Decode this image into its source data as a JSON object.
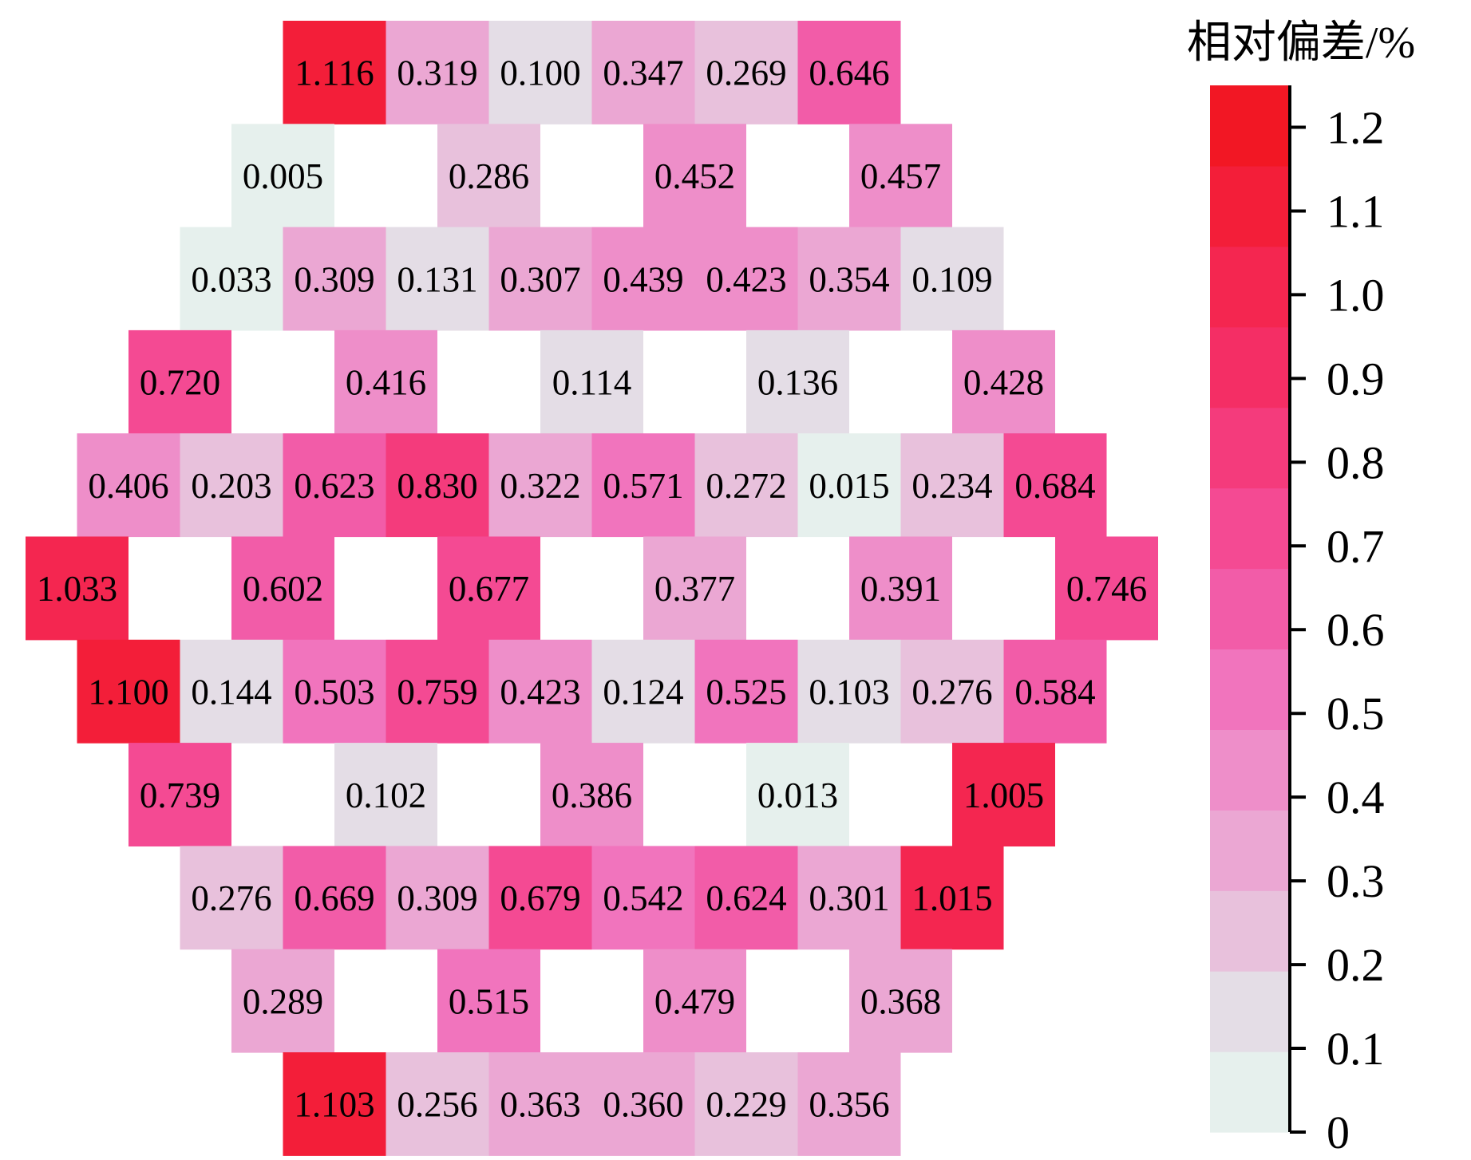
{
  "chart_data": {
    "type": "heatmap",
    "title": "",
    "colorbar": {
      "title": "相对偏差/%",
      "min": 0,
      "max": 1.25,
      "ticks": [
        0,
        0.1,
        0.2,
        0.3,
        0.4,
        0.5,
        0.6,
        0.7,
        0.8,
        0.9,
        1.0,
        1.1,
        1.2
      ],
      "tick_labels": [
        "0",
        "0.1",
        "0.2",
        "0.3",
        "0.4",
        "0.5",
        "0.6",
        "0.7",
        "0.8",
        "0.9",
        "1.0",
        "1.1",
        "1.2"
      ],
      "bands": [
        "#e6f0ed",
        "#e4dde6",
        "#e8c1dc",
        "#eba7d3",
        "#ee8ec9",
        "#f174bd",
        "#f25ca8",
        "#f44a93",
        "#f43b7c",
        "#f42e65",
        "#f42650",
        "#f31e39",
        "#f21724"
      ]
    },
    "rows": [
      {
        "cells": [
          {
            "col": 5,
            "value": "1.116"
          },
          {
            "col": 7,
            "value": "0.319"
          },
          {
            "col": 9,
            "value": "0.100"
          },
          {
            "col": 11,
            "value": "0.347"
          },
          {
            "col": 13,
            "value": "0.269"
          },
          {
            "col": 15,
            "value": "0.646"
          }
        ]
      },
      {
        "cells": [
          {
            "col": 4,
            "value": "0.005"
          },
          {
            "col": 8,
            "value": "0.286"
          },
          {
            "col": 12,
            "value": "0.452"
          },
          {
            "col": 16,
            "value": "0.457"
          }
        ]
      },
      {
        "cells": [
          {
            "col": 3,
            "value": "0.033"
          },
          {
            "col": 5,
            "value": "0.309"
          },
          {
            "col": 7,
            "value": "0.131"
          },
          {
            "col": 9,
            "value": "0.307"
          },
          {
            "col": 11,
            "value": "0.439"
          },
          {
            "col": 13,
            "value": "0.423"
          },
          {
            "col": 15,
            "value": "0.354"
          },
          {
            "col": 17,
            "value": "0.109"
          }
        ]
      },
      {
        "cells": [
          {
            "col": 2,
            "value": "0.720"
          },
          {
            "col": 6,
            "value": "0.416"
          },
          {
            "col": 10,
            "value": "0.114"
          },
          {
            "col": 14,
            "value": "0.136"
          },
          {
            "col": 18,
            "value": "0.428"
          }
        ]
      },
      {
        "cells": [
          {
            "col": 1,
            "value": "0.406"
          },
          {
            "col": 3,
            "value": "0.203"
          },
          {
            "col": 5,
            "value": "0.623"
          },
          {
            "col": 7,
            "value": "0.830"
          },
          {
            "col": 9,
            "value": "0.322"
          },
          {
            "col": 11,
            "value": "0.571"
          },
          {
            "col": 13,
            "value": "0.272"
          },
          {
            "col": 15,
            "value": "0.015"
          },
          {
            "col": 17,
            "value": "0.234"
          },
          {
            "col": 19,
            "value": "0.684"
          }
        ]
      },
      {
        "cells": [
          {
            "col": 0,
            "value": "1.033"
          },
          {
            "col": 4,
            "value": "0.602"
          },
          {
            "col": 8,
            "value": "0.677"
          },
          {
            "col": 12,
            "value": "0.377"
          },
          {
            "col": 16,
            "value": "0.391"
          },
          {
            "col": 20,
            "value": "0.746"
          }
        ]
      },
      {
        "cells": [
          {
            "col": 1,
            "value": "1.100"
          },
          {
            "col": 3,
            "value": "0.144"
          },
          {
            "col": 5,
            "value": "0.503"
          },
          {
            "col": 7,
            "value": "0.759"
          },
          {
            "col": 9,
            "value": "0.423"
          },
          {
            "col": 11,
            "value": "0.124"
          },
          {
            "col": 13,
            "value": "0.525"
          },
          {
            "col": 15,
            "value": "0.103"
          },
          {
            "col": 17,
            "value": "0.276"
          },
          {
            "col": 19,
            "value": "0.584"
          }
        ]
      },
      {
        "cells": [
          {
            "col": 2,
            "value": "0.739"
          },
          {
            "col": 6,
            "value": "0.102"
          },
          {
            "col": 10,
            "value": "0.386"
          },
          {
            "col": 14,
            "value": "0.013"
          },
          {
            "col": 18,
            "value": "1.005"
          }
        ]
      },
      {
        "cells": [
          {
            "col": 3,
            "value": "0.276"
          },
          {
            "col": 5,
            "value": "0.669"
          },
          {
            "col": 7,
            "value": "0.309"
          },
          {
            "col": 9,
            "value": "0.679"
          },
          {
            "col": 11,
            "value": "0.542"
          },
          {
            "col": 13,
            "value": "0.624"
          },
          {
            "col": 15,
            "value": "0.301"
          },
          {
            "col": 17,
            "value": "1.015"
          }
        ]
      },
      {
        "cells": [
          {
            "col": 4,
            "value": "0.289"
          },
          {
            "col": 8,
            "value": "0.515"
          },
          {
            "col": 12,
            "value": "0.479"
          },
          {
            "col": 16,
            "value": "0.368"
          }
        ]
      },
      {
        "cells": [
          {
            "col": 5,
            "value": "1.103"
          },
          {
            "col": 7,
            "value": "0.256"
          },
          {
            "col": 9,
            "value": "0.363"
          },
          {
            "col": 11,
            "value": "0.360"
          },
          {
            "col": 13,
            "value": "0.229"
          },
          {
            "col": 15,
            "value": "0.356"
          }
        ]
      }
    ]
  }
}
